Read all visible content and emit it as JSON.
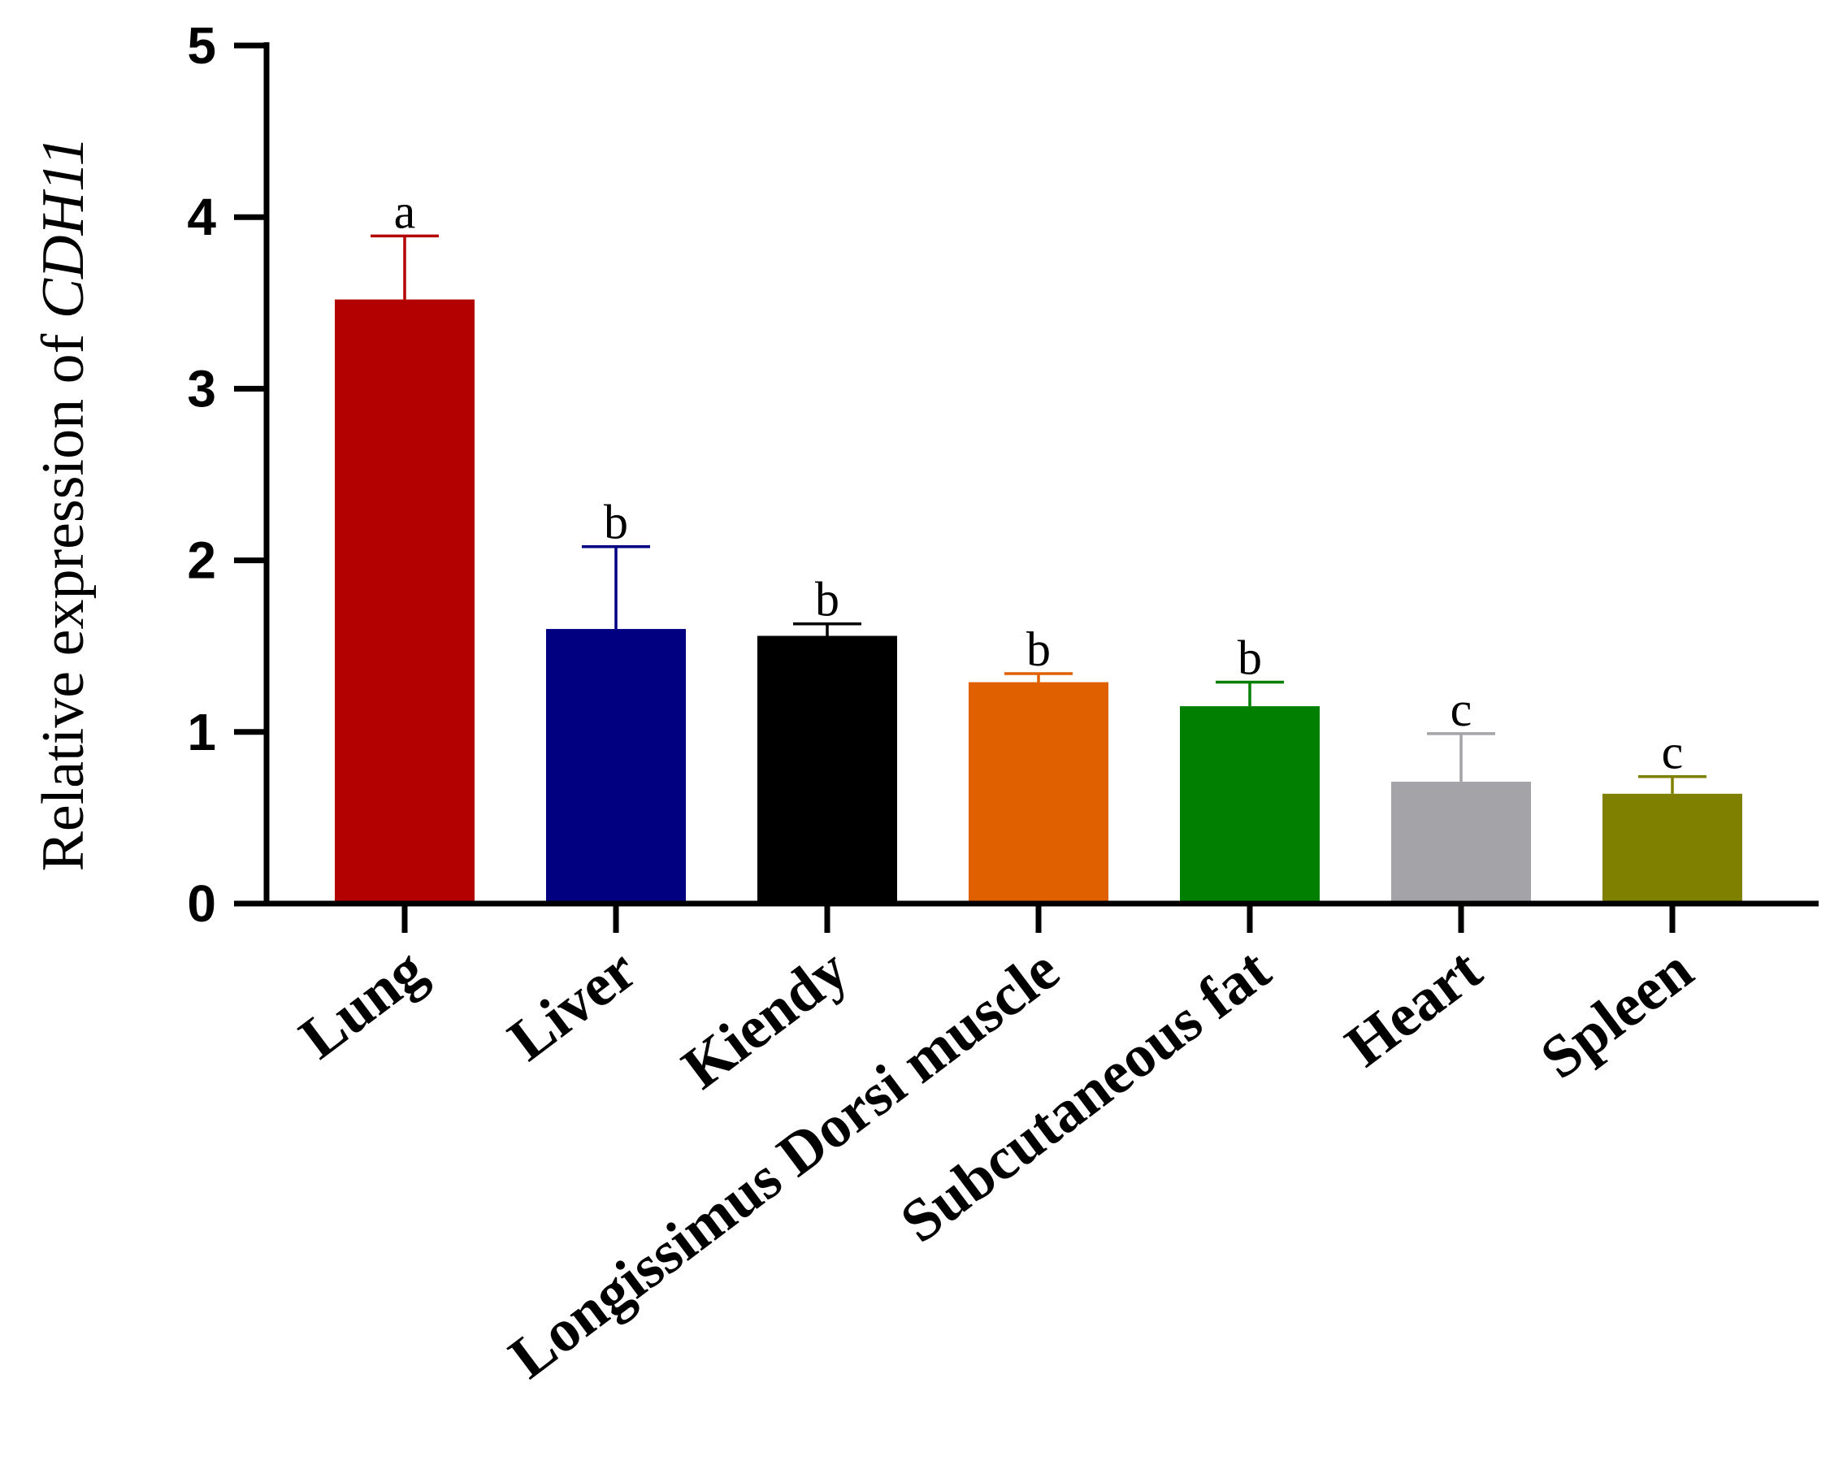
{
  "chart_data": {
    "type": "bar",
    "title": "",
    "xlabel": "",
    "ylabel": "Relative expression of ",
    "ylabel_gene": "CDH11",
    "ylim": [
      0,
      5
    ],
    "yticks": [
      0,
      1,
      2,
      3,
      4,
      5
    ],
    "grid": false,
    "categories": [
      "Lung",
      "Liver",
      "Kiendy",
      "Longissimus Dorsi muscle",
      "Subcutaneous fat",
      "Heart",
      "Spleen"
    ],
    "values": [
      3.52,
      1.6,
      1.56,
      1.29,
      1.15,
      0.71,
      0.64
    ],
    "errors": [
      0.37,
      0.48,
      0.07,
      0.05,
      0.14,
      0.28,
      0.1
    ],
    "significance": [
      "a",
      "b",
      "b",
      "b",
      "b",
      "c",
      "c"
    ],
    "colors": [
      "#b30000",
      "#000080",
      "#000000",
      "#e06000",
      "#007f00",
      "#a3a3a8",
      "#808000"
    ]
  }
}
